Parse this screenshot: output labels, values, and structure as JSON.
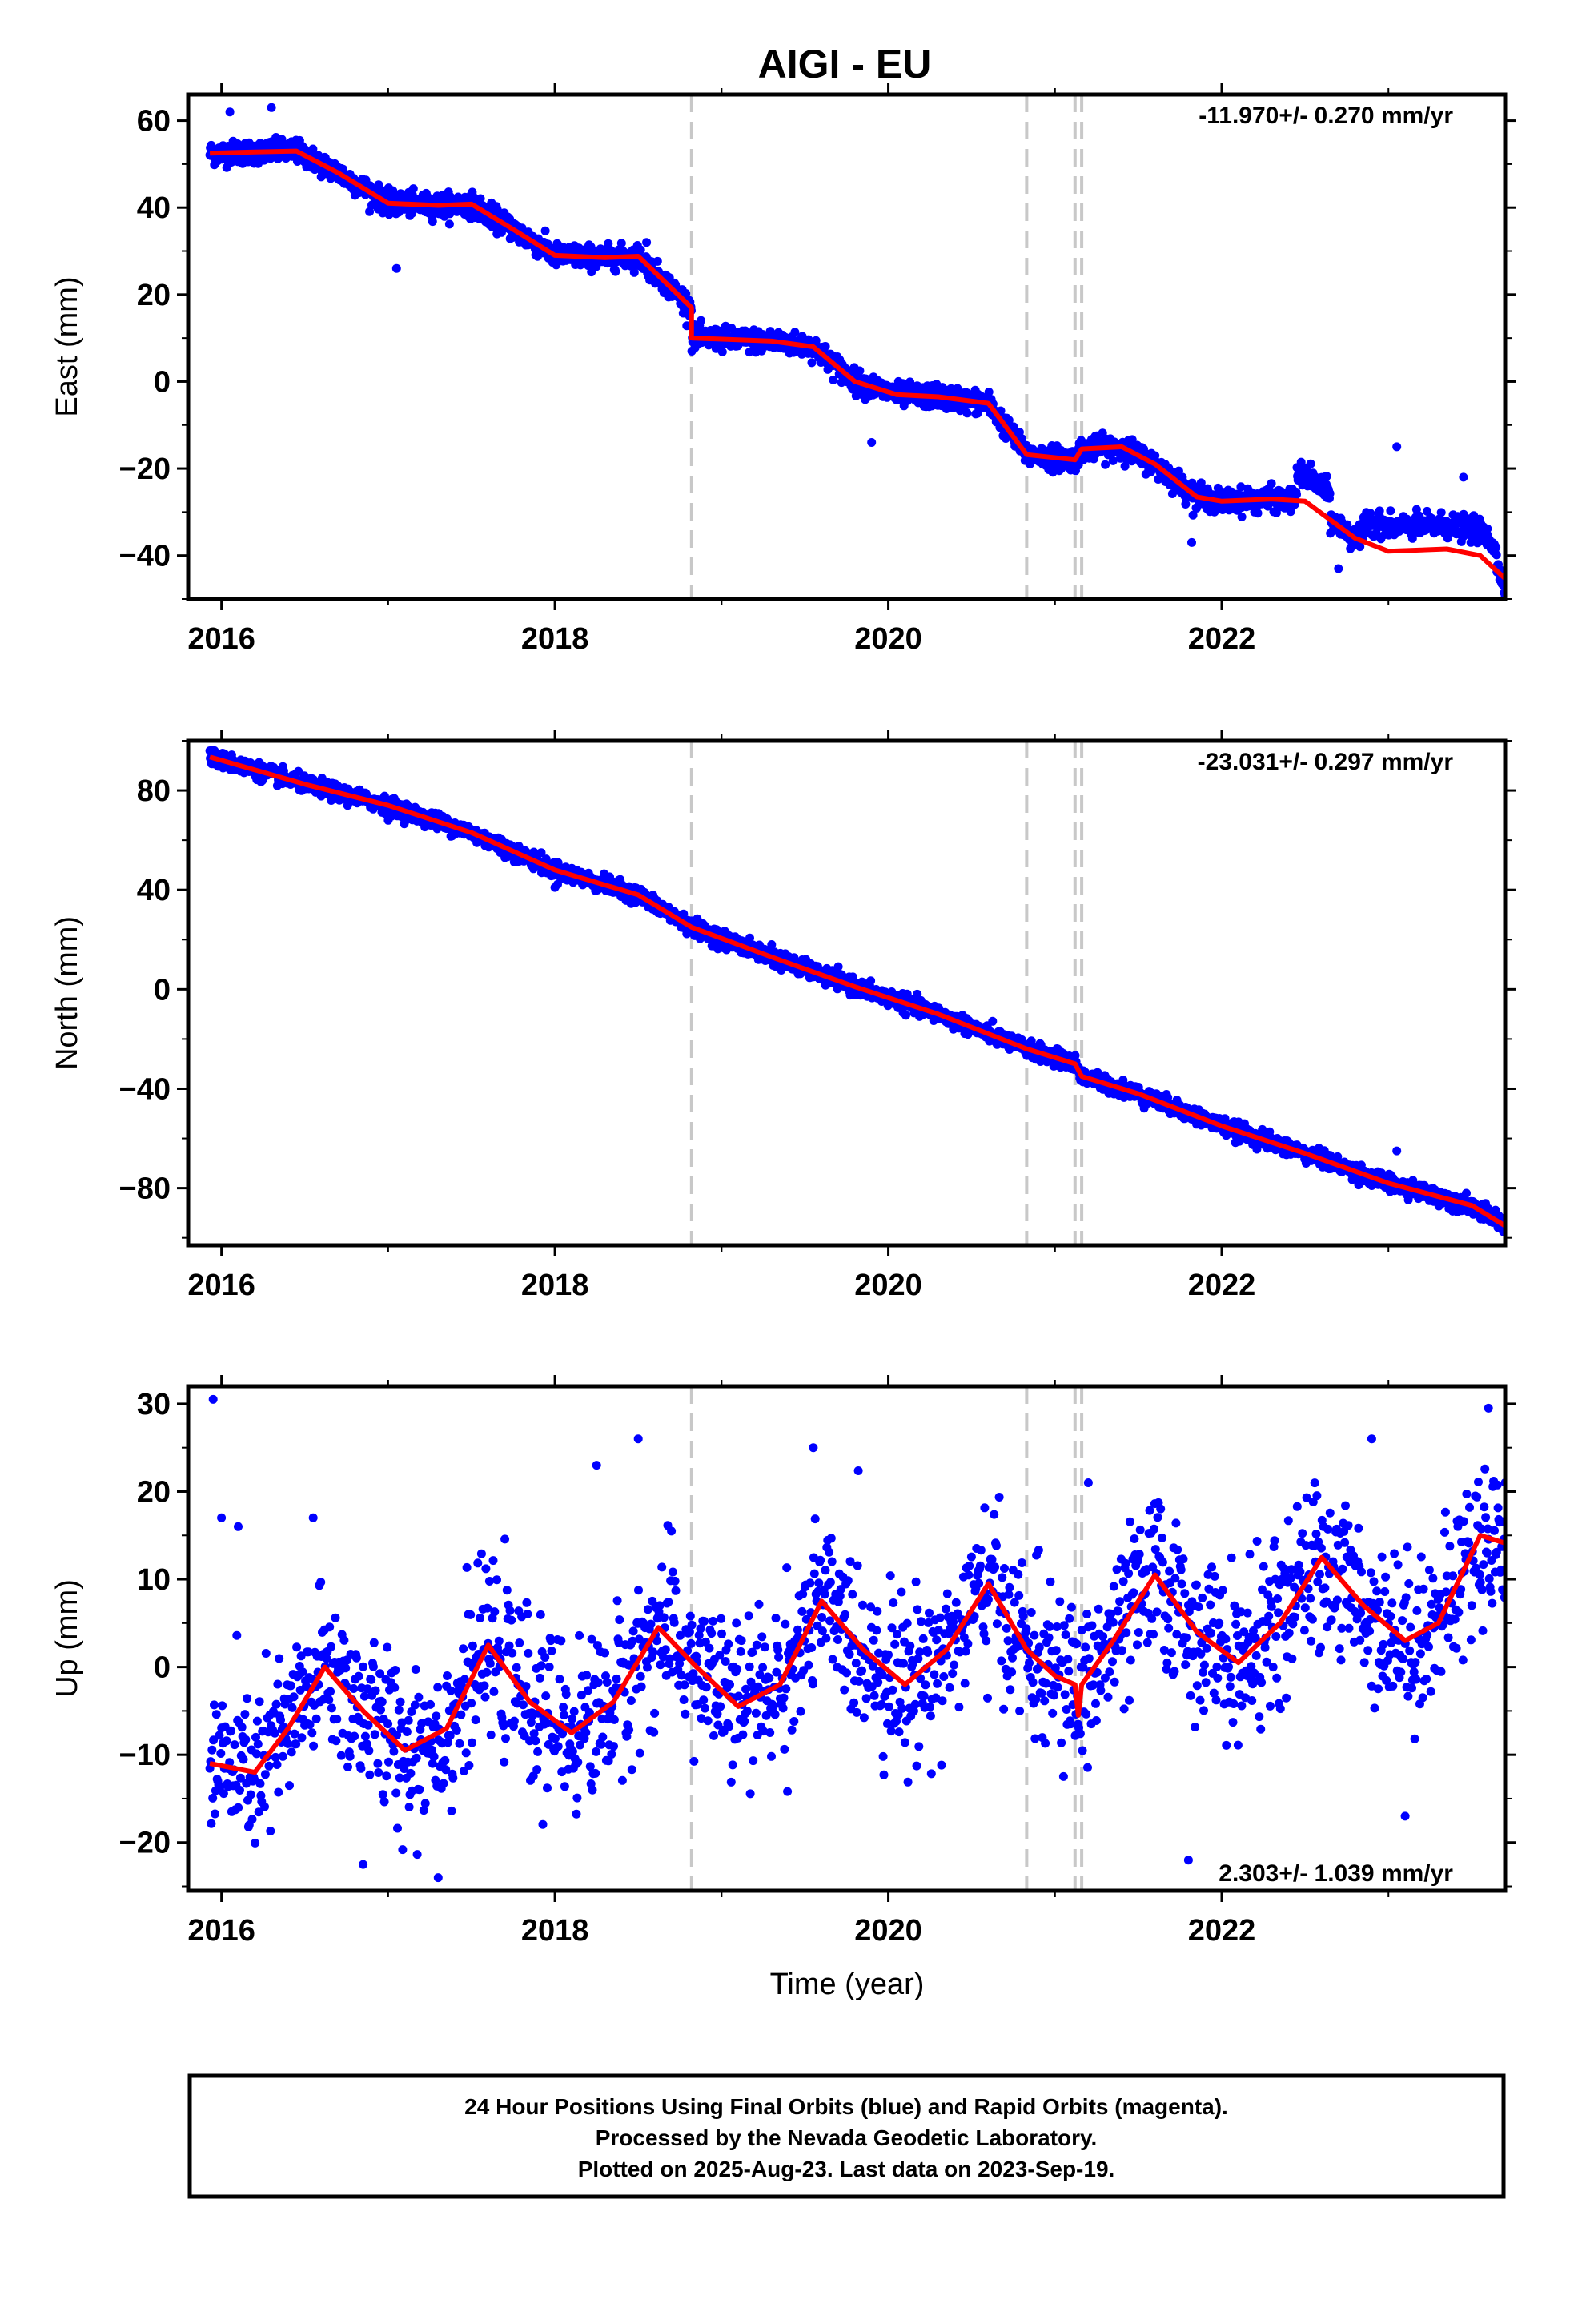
{
  "title": "AIGI - EU",
  "x_axis_label": "Time (year)",
  "footer": {
    "lines": [
      "24 Hour Positions Using Final Orbits (blue) and Rapid Orbits (magenta).",
      "Processed by the Nevada Geodetic Laboratory.",
      "Plotted on 2025-Aug-23. Last data on 2023-Sep-19."
    ]
  },
  "colors": {
    "final_orbits": "#0000ff",
    "model_fit": "#ff0000",
    "steps": "#c8c8c8",
    "frame": "#000000"
  },
  "chart_data": [
    {
      "type": "scatter",
      "id": "east",
      "ylabel": "East (mm)",
      "rate_label": "-11.970+/- 0.270 mm/yr",
      "xlim": [
        2015.8,
        2023.7
      ],
      "ylim": [
        -50,
        66
      ],
      "x_ticks": [
        2016,
        2018,
        2020,
        2022
      ],
      "y_ticks": [
        -40,
        -20,
        0,
        20,
        40,
        60
      ],
      "step_epochs": [
        2018.82,
        2020.83,
        2021.12,
        2021.16
      ],
      "series": [
        {
          "name": "Final Orbits",
          "color": "#0000ff",
          "start": 2015.93,
          "end": 2023.72,
          "spacing_days": 1.0,
          "scatter_sd": 1.3,
          "outliers": [
            [
              2016.05,
              62
            ],
            [
              2016.3,
              63
            ],
            [
              2017.05,
              26
            ],
            [
              2018.55,
              32
            ],
            [
              2019.9,
              -14
            ],
            [
              2021.82,
              -37
            ],
            [
              2023.05,
              -15
            ],
            [
              2023.45,
              -22
            ],
            [
              2022.7,
              -43
            ]
          ],
          "anomaly_segments": [
            [
              2022.45,
              2022.65,
              6
            ],
            [
              2022.85,
              2023.65,
              5.5
            ]
          ]
        },
        {
          "name": "Model fit",
          "color": "#ff0000",
          "points": [
            [
              2015.93,
              52.5
            ],
            [
              2016.2,
              52.8
            ],
            [
              2016.45,
              53
            ],
            [
              2016.7,
              48
            ],
            [
              2017.0,
              41
            ],
            [
              2017.3,
              40.5
            ],
            [
              2017.5,
              40.8
            ],
            [
              2017.75,
              35
            ],
            [
              2018.0,
              29
            ],
            [
              2018.3,
              28.5
            ],
            [
              2018.5,
              28.8
            ],
            [
              2018.82,
              17
            ],
            [
              2018.82,
              10
            ],
            [
              2019.3,
              9.3
            ],
            [
              2019.55,
              8
            ],
            [
              2019.8,
              0
            ],
            [
              2020.05,
              -3
            ],
            [
              2020.3,
              -3.5
            ],
            [
              2020.6,
              -5
            ],
            [
              2020.83,
              -16.8
            ],
            [
              2021.12,
              -18
            ],
            [
              2021.16,
              -15.5
            ],
            [
              2021.4,
              -15
            ],
            [
              2021.6,
              -19
            ],
            [
              2021.85,
              -26.5
            ],
            [
              2022.0,
              -27.5
            ],
            [
              2022.3,
              -27
            ],
            [
              2022.5,
              -27.5
            ],
            [
              2022.8,
              -36
            ],
            [
              2023.0,
              -39
            ],
            [
              2023.35,
              -38.5
            ],
            [
              2023.55,
              -40
            ],
            [
              2023.72,
              -46
            ]
          ]
        }
      ]
    },
    {
      "type": "scatter",
      "id": "north",
      "ylabel": "North (mm)",
      "rate_label": "-23.031+/- 0.297 mm/yr",
      "xlim": [
        2015.8,
        2023.7
      ],
      "ylim": [
        -103,
        100
      ],
      "x_ticks": [
        2016,
        2018,
        2020,
        2022
      ],
      "y_ticks": [
        -80,
        -40,
        0,
        40,
        80
      ],
      "step_epochs": [
        2018.82,
        2020.83,
        2021.12,
        2021.16
      ],
      "series": [
        {
          "name": "Final Orbits",
          "color": "#0000ff",
          "start": 2015.93,
          "end": 2023.72,
          "spacing_days": 1.0,
          "scatter_sd": 1.6,
          "outliers": [
            [
              2017.0,
              68
            ],
            [
              2017.7,
              53
            ],
            [
              2018.0,
              41
            ],
            [
              2018.6,
              33
            ],
            [
              2019.3,
              18
            ],
            [
              2022.2,
              -58
            ],
            [
              2022.9,
              -79
            ],
            [
              2023.05,
              -65
            ]
          ],
          "anomaly_segments": []
        },
        {
          "name": "Model fit",
          "color": "#ff0000",
          "points": [
            [
              2015.93,
              93.5
            ],
            [
              2016.5,
              82.5
            ],
            [
              2017.0,
              74
            ],
            [
              2017.5,
              63
            ],
            [
              2018.0,
              48
            ],
            [
              2018.5,
              38
            ],
            [
              2018.82,
              25
            ],
            [
              2019.3,
              13
            ],
            [
              2019.8,
              1
            ],
            [
              2020.3,
              -10
            ],
            [
              2020.83,
              -24
            ],
            [
              2021.12,
              -30
            ],
            [
              2021.16,
              -35
            ],
            [
              2021.5,
              -42
            ],
            [
              2022.0,
              -55
            ],
            [
              2022.5,
              -66
            ],
            [
              2023.0,
              -78
            ],
            [
              2023.5,
              -87
            ],
            [
              2023.72,
              -96
            ]
          ]
        }
      ]
    },
    {
      "type": "scatter",
      "id": "up",
      "ylabel": "Up (mm)",
      "rate_label": "2.303+/- 1.039 mm/yr",
      "xlim": [
        2015.8,
        2023.7
      ],
      "ylim": [
        -25.5,
        32
      ],
      "x_ticks": [
        2016,
        2018,
        2020,
        2022
      ],
      "y_ticks": [
        -20,
        -10,
        0,
        10,
        20,
        30
      ],
      "step_epochs": [
        2018.82,
        2020.83,
        2021.12,
        2021.16
      ],
      "series": [
        {
          "name": "Final Orbits",
          "color": "#0000ff",
          "start": 2015.93,
          "end": 2023.72,
          "spacing_days": 1.6,
          "scatter_sd": 4.6,
          "outliers": [
            [
              2015.95,
              30.5
            ],
            [
              2016.0,
              17
            ],
            [
              2016.1,
              16
            ],
            [
              2016.55,
              17
            ],
            [
              2017.3,
              -24
            ],
            [
              2016.85,
              -22.5
            ],
            [
              2018.5,
              26
            ],
            [
              2018.25,
              23
            ],
            [
              2019.55,
              25
            ],
            [
              2021.8,
              -22
            ],
            [
              2023.1,
              -17
            ],
            [
              2023.6,
              29.5
            ],
            [
              2022.9,
              26
            ],
            [
              2021.2,
              21
            ]
          ],
          "anomaly_segments": []
        },
        {
          "name": "Model fit",
          "color": "#ff0000",
          "points": [
            [
              2015.93,
              -11
            ],
            [
              2016.2,
              -12
            ],
            [
              2016.4,
              -7
            ],
            [
              2016.62,
              0
            ],
            [
              2016.85,
              -5
            ],
            [
              2017.1,
              -9.5
            ],
            [
              2017.35,
              -7
            ],
            [
              2017.6,
              2.5
            ],
            [
              2017.85,
              -4
            ],
            [
              2018.1,
              -7.5
            ],
            [
              2018.35,
              -4
            ],
            [
              2018.62,
              4.5
            ],
            [
              2018.85,
              0
            ],
            [
              2019.1,
              -4.5
            ],
            [
              2019.35,
              -2
            ],
            [
              2019.6,
              7.5
            ],
            [
              2019.85,
              2
            ],
            [
              2020.1,
              -2
            ],
            [
              2020.35,
              2
            ],
            [
              2020.6,
              9.5
            ],
            [
              2020.83,
              2
            ],
            [
              2021.0,
              -1
            ],
            [
              2021.12,
              -2
            ],
            [
              2021.14,
              -5.5
            ],
            [
              2021.16,
              -2
            ],
            [
              2021.35,
              3
            ],
            [
              2021.6,
              10.5
            ],
            [
              2021.85,
              4
            ],
            [
              2022.1,
              0.5
            ],
            [
              2022.35,
              5
            ],
            [
              2022.6,
              12.5
            ],
            [
              2022.85,
              7
            ],
            [
              2023.1,
              3
            ],
            [
              2023.3,
              5
            ],
            [
              2023.55,
              15
            ],
            [
              2023.72,
              14
            ]
          ]
        }
      ]
    }
  ]
}
